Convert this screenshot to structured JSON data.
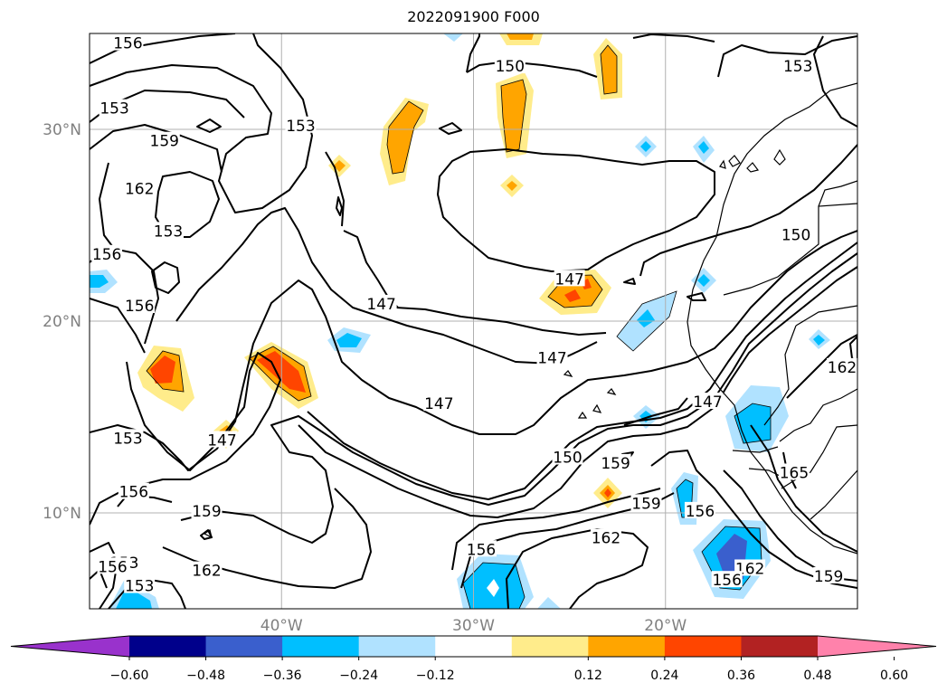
{
  "title": "2022091900 F000",
  "map": {
    "lon_min": -50,
    "lon_max": -10,
    "lat_min": 5,
    "lat_max": 35,
    "lon_ticks": [
      {
        "value": -40,
        "label": "40°W"
      },
      {
        "value": -30,
        "label": "30°W"
      },
      {
        "value": -20,
        "label": "20°W"
      }
    ],
    "lat_ticks": [
      {
        "value": 30,
        "label": "30°N"
      },
      {
        "value": 20,
        "label": "20°N"
      },
      {
        "value": 10,
        "label": "10°N"
      }
    ],
    "gridlines": true,
    "contour_labels": [
      {
        "text": "156",
        "lon": -48,
        "lat": 34.5
      },
      {
        "text": "153",
        "lon": -48.7,
        "lat": 31.1
      },
      {
        "text": "159",
        "lon": -46.1,
        "lat": 29.4
      },
      {
        "text": "162",
        "lon": -47.4,
        "lat": 26.9
      },
      {
        "text": "153",
        "lon": -45.9,
        "lat": 24.7
      },
      {
        "text": "156",
        "lon": -49.1,
        "lat": 23.5
      },
      {
        "text": "156",
        "lon": -47.4,
        "lat": 20.8
      },
      {
        "text": "153",
        "lon": -39,
        "lat": 30.2
      },
      {
        "text": "147",
        "lon": -34.8,
        "lat": 20.9
      },
      {
        "text": "150",
        "lon": -28.1,
        "lat": 33.3
      },
      {
        "text": "147",
        "lon": -25,
        "lat": 22.2
      },
      {
        "text": "147",
        "lon": -25.9,
        "lat": 18.1
      },
      {
        "text": "147",
        "lon": -31.8,
        "lat": 15.7
      },
      {
        "text": "153",
        "lon": -48,
        "lat": 13.9
      },
      {
        "text": "147",
        "lon": -43.1,
        "lat": 13.8
      },
      {
        "text": "156",
        "lon": -47.7,
        "lat": 11.1
      },
      {
        "text": "159",
        "lon": -43.9,
        "lat": 10.1
      },
      {
        "text": "162",
        "lon": -43.9,
        "lat": 7
      },
      {
        "text": "153",
        "lon": -48.2,
        "lat": 7.4
      },
      {
        "text": "153",
        "lon": -47.4,
        "lat": 6.2
      },
      {
        "text": "156",
        "lon": -48.8,
        "lat": 7.2
      },
      {
        "text": "150",
        "lon": -25.1,
        "lat": 12.9
      },
      {
        "text": "159",
        "lon": -22.6,
        "lat": 12.6
      },
      {
        "text": "159",
        "lon": -21,
        "lat": 10.5
      },
      {
        "text": "162",
        "lon": -23.1,
        "lat": 8.7
      },
      {
        "text": "156",
        "lon": -29.6,
        "lat": 8.1
      },
      {
        "text": "156",
        "lon": -18.2,
        "lat": 10.1
      },
      {
        "text": "147",
        "lon": -17.8,
        "lat": 15.8
      },
      {
        "text": "150",
        "lon": -13.2,
        "lat": 24.5
      },
      {
        "text": "153",
        "lon": -13.1,
        "lat": 33.3
      },
      {
        "text": "162",
        "lon": -10.8,
        "lat": 17.6
      },
      {
        "text": "165",
        "lon": -13.3,
        "lat": 12.1
      },
      {
        "text": "162",
        "lon": -15.6,
        "lat": 7.1
      },
      {
        "text": "156",
        "lon": -16.8,
        "lat": 6.5
      },
      {
        "text": "159",
        "lon": -11.5,
        "lat": 6.7
      }
    ]
  },
  "colorbar": {
    "ticks": [
      "−0.60",
      "−0.48",
      "−0.36",
      "−0.24",
      "−0.12",
      "0.12",
      "0.24",
      "0.36",
      "0.48",
      "0.60"
    ],
    "colors": [
      "#9932cc",
      "#00008b",
      "#3a5fcd",
      "#00bfff",
      "#b0e2ff",
      "#ffffff",
      "#ffec8b",
      "#ffa500",
      "#ff4500",
      "#b22222",
      "#ff82ab"
    ]
  },
  "shading_colors": {
    "light_blue": "#b0e2ff",
    "blue": "#00bfff",
    "royal": "#3a5fcd",
    "light_yellow": "#ffec8b",
    "orange": "#ffa500",
    "red": "#ff4500"
  }
}
